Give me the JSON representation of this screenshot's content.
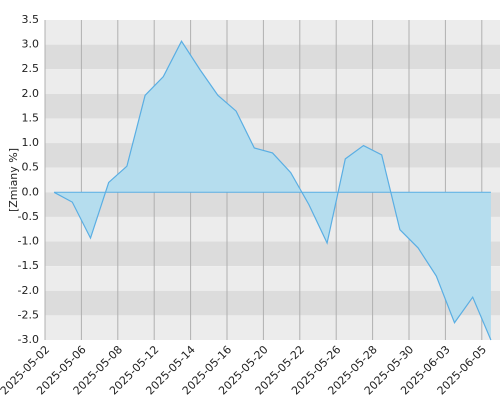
{
  "chart_data": {
    "type": "area",
    "y_label": "[Zmiany %]",
    "x": [
      0,
      1,
      2,
      3,
      4,
      5,
      6,
      7,
      8,
      9,
      10,
      11,
      12,
      13,
      14,
      15,
      16,
      17,
      18,
      19,
      20,
      21,
      22,
      23,
      24
    ],
    "series": [
      {
        "color": "#5aaee3",
        "fill": "#b5ddee",
        "values": [
          0.0,
          -0.2,
          -0.93,
          0.2,
          0.53,
          1.97,
          2.35,
          3.07,
          2.5,
          1.97,
          1.65,
          0.9,
          0.8,
          0.4,
          -0.25,
          -1.03,
          0.68,
          0.95,
          0.76,
          -0.76,
          -1.13,
          -1.7,
          -2.65,
          -2.13,
          -3.0
        ]
      }
    ],
    "xlim": [
      -0.5,
      24.5
    ],
    "xticks": [
      {
        "value": -0.5,
        "label": "2025-05-02"
      },
      {
        "value": 1.5,
        "label": "2025-05-06"
      },
      {
        "value": 3.5,
        "label": "2025-05-08"
      },
      {
        "value": 5.5,
        "label": "2025-05-12"
      },
      {
        "value": 7.5,
        "label": "2025-05-14"
      },
      {
        "value": 9.5,
        "label": "2025-05-16"
      },
      {
        "value": 11.5,
        "label": "2025-05-20"
      },
      {
        "value": 13.5,
        "label": "2025-05-22"
      },
      {
        "value": 15.5,
        "label": "2025-05-26"
      },
      {
        "value": 17.5,
        "label": "2025-05-28"
      },
      {
        "value": 19.5,
        "label": "2025-05-30"
      },
      {
        "value": 21.5,
        "label": "2025-06-03"
      },
      {
        "value": 23.5,
        "label": "2025-06-05"
      }
    ],
    "ylim": [
      -3.0,
      3.5
    ],
    "yticks": [
      3.5,
      {
        "value": 3.0,
        "label": "3.0"
      },
      2.5,
      {
        "value": 2.0,
        "label": "2.0"
      },
      1.5,
      {
        "value": 1.0,
        "label": "1.0"
      },
      0.5,
      {
        "value": 0.0,
        "label": "0.0"
      },
      -0.5,
      {
        "value": -1.0,
        "label": "-1.0"
      },
      -1.5,
      {
        "value": -2.0,
        "label": "-2.0"
      },
      -2.5,
      {
        "value": -3.0,
        "label": "-3.0"
      }
    ],
    "grid": true
  }
}
